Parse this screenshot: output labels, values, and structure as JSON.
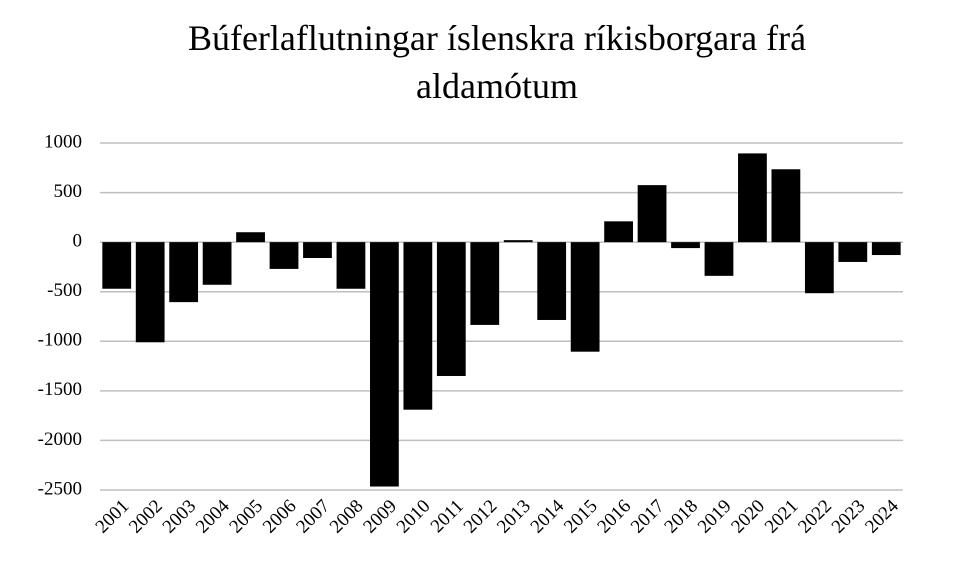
{
  "chart_data": {
    "type": "bar",
    "title": [
      "Búferlaflutningar íslenskra ríkisborgara frá",
      "aldamótum"
    ],
    "categories": [
      "2001",
      "2002",
      "2003",
      "2004",
      "2005",
      "2006",
      "2007",
      "2008",
      "2009",
      "2010",
      "2011",
      "2012",
      "2013",
      "2014",
      "2015",
      "2016",
      "2017",
      "2018",
      "2019",
      "2020",
      "2021",
      "2022",
      "2023",
      "2024"
    ],
    "values": [
      -470,
      -1010,
      -605,
      -430,
      100,
      -270,
      -160,
      -470,
      -2465,
      -1690,
      -1350,
      -835,
      20,
      -785,
      -1105,
      210,
      575,
      -60,
      -340,
      895,
      735,
      -515,
      -200,
      -130
    ],
    "color": "#000000",
    "ylim": [
      -2500,
      1000
    ],
    "yticks": [
      -2500,
      -2000,
      -1500,
      -1000,
      -500,
      0,
      500,
      1000
    ],
    "grid": true
  }
}
